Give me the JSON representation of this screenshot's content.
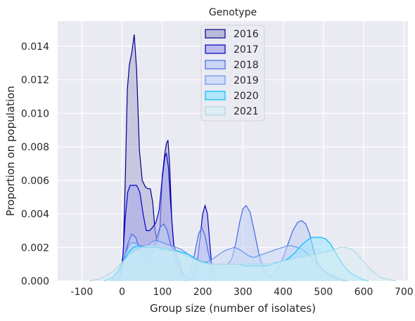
{
  "chart_data": {
    "type": "area",
    "title": "Genotype",
    "xlabel": "Group size (number of isolates)",
    "ylabel": "Proportion on population",
    "xlim": [
      -160,
      710
    ],
    "ylim": [
      0,
      0.0155
    ],
    "xticks": [
      -100,
      0,
      100,
      200,
      300,
      400,
      500,
      600,
      700
    ],
    "yticks": [
      0.0,
      0.002,
      0.004,
      0.006,
      0.008,
      0.01,
      0.012,
      0.014
    ],
    "ytick_labels": [
      "0.000",
      "0.002",
      "0.004",
      "0.006",
      "0.008",
      "0.010",
      "0.012",
      "0.014"
    ],
    "grid": true,
    "legend_position": "top-center",
    "series": [
      {
        "name": "2016",
        "color": "#00008b",
        "fill": "#aaaad1",
        "points": [
          [
            -10,
            0
          ],
          [
            -2,
            0.0003
          ],
          [
            3,
            0.0017
          ],
          [
            8,
            0.0062
          ],
          [
            13,
            0.0114
          ],
          [
            18,
            0.0129
          ],
          [
            24,
            0.0136
          ],
          [
            30,
            0.0147
          ],
          [
            36,
            0.0126
          ],
          [
            43,
            0.0078
          ],
          [
            50,
            0.006
          ],
          [
            58,
            0.0056
          ],
          [
            64,
            0.0055
          ],
          [
            70,
            0.0055
          ],
          [
            76,
            0.0047
          ],
          [
            82,
            0.003
          ],
          [
            88,
            0.0022
          ],
          [
            94,
            0.0031
          ],
          [
            100,
            0.0063
          ],
          [
            106,
            0.0076
          ],
          [
            110,
            0.0082
          ],
          [
            114,
            0.0084
          ],
          [
            118,
            0.007
          ],
          [
            124,
            0.0033
          ],
          [
            132,
            0.0013
          ],
          [
            140,
            0.0005
          ],
          [
            150,
            0.0001
          ],
          [
            160,
            0
          ]
        ]
      },
      {
        "name": "2017",
        "color": "#0000cd",
        "fill": "#aaaaeb",
        "points": [
          [
            -10,
            0
          ],
          [
            -4,
            0.0003
          ],
          [
            2,
            0.0015
          ],
          [
            8,
            0.0038
          ],
          [
            14,
            0.0053
          ],
          [
            20,
            0.0057
          ],
          [
            28,
            0.0057
          ],
          [
            36,
            0.0057
          ],
          [
            44,
            0.0053
          ],
          [
            52,
            0.004
          ],
          [
            60,
            0.003
          ],
          [
            68,
            0.003
          ],
          [
            76,
            0.0032
          ],
          [
            84,
            0.0035
          ],
          [
            92,
            0.0042
          ],
          [
            100,
            0.0062
          ],
          [
            106,
            0.0074
          ],
          [
            110,
            0.0076
          ],
          [
            115,
            0.0068
          ],
          [
            120,
            0.0048
          ],
          [
            128,
            0.0022
          ],
          [
            136,
            0.0015
          ],
          [
            144,
            0.001
          ],
          [
            150,
            0.0005
          ],
          [
            158,
            0.0002
          ],
          [
            166,
            0.0001
          ],
          [
            176,
            0.0002
          ],
          [
            186,
            0.001
          ],
          [
            194,
            0.0026
          ],
          [
            200,
            0.004
          ],
          [
            206,
            0.0045
          ],
          [
            212,
            0.004
          ],
          [
            218,
            0.0022
          ],
          [
            224,
            0.0005
          ],
          [
            232,
            0
          ]
        ]
      },
      {
        "name": "2018",
        "color": "#4169e1",
        "fill": "#c0cdf5",
        "points": [
          [
            -20,
            0
          ],
          [
            -8,
            0.0002
          ],
          [
            4,
            0.0012
          ],
          [
            14,
            0.0022
          ],
          [
            24,
            0.0028
          ],
          [
            34,
            0.0026
          ],
          [
            44,
            0.0018
          ],
          [
            54,
            0.0013
          ],
          [
            64,
            0.0012
          ],
          [
            74,
            0.0016
          ],
          [
            84,
            0.0024
          ],
          [
            94,
            0.0032
          ],
          [
            104,
            0.0034
          ],
          [
            112,
            0.003
          ],
          [
            120,
            0.0022
          ],
          [
            130,
            0.0016
          ],
          [
            140,
            0.0009
          ],
          [
            150,
            0.0004
          ],
          [
            160,
            0.0002
          ],
          [
            170,
            0.0006
          ],
          [
            180,
            0.0016
          ],
          [
            190,
            0.0028
          ],
          [
            198,
            0.0032
          ],
          [
            206,
            0.0027
          ],
          [
            214,
            0.0017
          ],
          [
            222,
            0.0009
          ],
          [
            232,
            0.0007
          ],
          [
            242,
            0.001
          ],
          [
            252,
            0.001
          ],
          [
            262,
            0.001
          ],
          [
            272,
            0.0013
          ],
          [
            282,
            0.0022
          ],
          [
            292,
            0.0035
          ],
          [
            300,
            0.0043
          ],
          [
            308,
            0.0045
          ],
          [
            318,
            0.0041
          ],
          [
            328,
            0.003
          ],
          [
            340,
            0.0016
          ],
          [
            352,
            0.0006
          ],
          [
            364,
            0.0002
          ],
          [
            376,
            0.0004
          ],
          [
            388,
            0.0008
          ],
          [
            400,
            0.0014
          ],
          [
            412,
            0.0022
          ],
          [
            424,
            0.003
          ],
          [
            436,
            0.0035
          ],
          [
            446,
            0.0036
          ],
          [
            456,
            0.0034
          ],
          [
            466,
            0.0028
          ],
          [
            476,
            0.0018
          ],
          [
            486,
            0.001
          ],
          [
            500,
            0.0006
          ],
          [
            516,
            0.0003
          ],
          [
            534,
            0.0001
          ],
          [
            552,
            0
          ]
        ]
      },
      {
        "name": "2019",
        "color": "#6495ed",
        "fill": "#c8d8f8",
        "points": [
          [
            -30,
            0
          ],
          [
            -16,
            0.0002
          ],
          [
            -4,
            0.0007
          ],
          [
            8,
            0.0016
          ],
          [
            18,
            0.0022
          ],
          [
            28,
            0.0023
          ],
          [
            38,
            0.0022
          ],
          [
            48,
            0.0021
          ],
          [
            58,
            0.0021
          ],
          [
            68,
            0.0022
          ],
          [
            78,
            0.0024
          ],
          [
            88,
            0.0024
          ],
          [
            98,
            0.0023
          ],
          [
            110,
            0.0022
          ],
          [
            122,
            0.0021
          ],
          [
            134,
            0.002
          ],
          [
            146,
            0.0019
          ],
          [
            158,
            0.0017
          ],
          [
            170,
            0.0015
          ],
          [
            182,
            0.0013
          ],
          [
            194,
            0.0011
          ],
          [
            206,
            0.0011
          ],
          [
            218,
            0.0012
          ],
          [
            230,
            0.0014
          ],
          [
            242,
            0.0016
          ],
          [
            254,
            0.0018
          ],
          [
            266,
            0.0019
          ],
          [
            278,
            0.002
          ],
          [
            290,
            0.0019
          ],
          [
            302,
            0.0017
          ],
          [
            314,
            0.0015
          ],
          [
            326,
            0.0014
          ],
          [
            338,
            0.0015
          ],
          [
            350,
            0.0016
          ],
          [
            362,
            0.0017
          ],
          [
            374,
            0.0018
          ],
          [
            386,
            0.0019
          ],
          [
            398,
            0.002
          ],
          [
            410,
            0.0021
          ],
          [
            422,
            0.0021
          ],
          [
            434,
            0.002
          ],
          [
            446,
            0.0019
          ],
          [
            458,
            0.0017
          ],
          [
            470,
            0.0014
          ],
          [
            482,
            0.0011
          ],
          [
            494,
            0.0008
          ],
          [
            508,
            0.0005
          ],
          [
            524,
            0.0003
          ],
          [
            542,
            0.0001
          ],
          [
            560,
            0
          ]
        ]
      },
      {
        "name": "2020",
        "color": "#00bfff",
        "fill": "#99e5ff",
        "points": [
          [
            -45,
            0
          ],
          [
            -25,
            0.0002
          ],
          [
            -10,
            0.0006
          ],
          [
            4,
            0.0012
          ],
          [
            16,
            0.0017
          ],
          [
            28,
            0.002
          ],
          [
            40,
            0.0021
          ],
          [
            52,
            0.002
          ],
          [
            64,
            0.002
          ],
          [
            76,
            0.002
          ],
          [
            88,
            0.002
          ],
          [
            100,
            0.0019
          ],
          [
            112,
            0.0019
          ],
          [
            124,
            0.0018
          ],
          [
            136,
            0.0018
          ],
          [
            150,
            0.0017
          ],
          [
            164,
            0.0016
          ],
          [
            178,
            0.0014
          ],
          [
            192,
            0.0012
          ],
          [
            206,
            0.0011
          ],
          [
            220,
            0.001
          ],
          [
            234,
            0.001
          ],
          [
            248,
            0.001
          ],
          [
            262,
            0.001
          ],
          [
            276,
            0.001
          ],
          [
            290,
            0.001
          ],
          [
            304,
            0.0009
          ],
          [
            318,
            0.0009
          ],
          [
            332,
            0.0009
          ],
          [
            346,
            0.0009
          ],
          [
            360,
            0.0009
          ],
          [
            374,
            0.001
          ],
          [
            388,
            0.0011
          ],
          [
            402,
            0.0012
          ],
          [
            416,
            0.0014
          ],
          [
            430,
            0.0017
          ],
          [
            444,
            0.0021
          ],
          [
            458,
            0.0024
          ],
          [
            470,
            0.0026
          ],
          [
            482,
            0.0026
          ],
          [
            494,
            0.0026
          ],
          [
            506,
            0.0025
          ],
          [
            518,
            0.0022
          ],
          [
            530,
            0.0017
          ],
          [
            542,
            0.0012
          ],
          [
            554,
            0.0008
          ],
          [
            566,
            0.0005
          ],
          [
            580,
            0.0003
          ],
          [
            596,
            0.0001
          ],
          [
            612,
            0
          ]
        ]
      },
      {
        "name": "2021",
        "color": "#add8e6",
        "fill": "#d9ecf3",
        "points": [
          [
            -80,
            0
          ],
          [
            -60,
            0.0001
          ],
          [
            -40,
            0.0003
          ],
          [
            -20,
            0.0006
          ],
          [
            0,
            0.0011
          ],
          [
            20,
            0.0016
          ],
          [
            40,
            0.0019
          ],
          [
            60,
            0.0021
          ],
          [
            80,
            0.0021
          ],
          [
            100,
            0.002
          ],
          [
            120,
            0.0019
          ],
          [
            140,
            0.0017
          ],
          [
            160,
            0.0015
          ],
          [
            180,
            0.0013
          ],
          [
            200,
            0.0011
          ],
          [
            220,
            0.001
          ],
          [
            240,
            0.001
          ],
          [
            260,
            0.001
          ],
          [
            280,
            0.001
          ],
          [
            300,
            0.001
          ],
          [
            320,
            0.001
          ],
          [
            340,
            0.001
          ],
          [
            360,
            0.001
          ],
          [
            380,
            0.0011
          ],
          [
            400,
            0.0012
          ],
          [
            420,
            0.0013
          ],
          [
            440,
            0.0014
          ],
          [
            460,
            0.0015
          ],
          [
            480,
            0.0016
          ],
          [
            500,
            0.0017
          ],
          [
            520,
            0.0018
          ],
          [
            540,
            0.002
          ],
          [
            556,
            0.002
          ],
          [
            570,
            0.0019
          ],
          [
            584,
            0.0016
          ],
          [
            598,
            0.0012
          ],
          [
            612,
            0.0008
          ],
          [
            626,
            0.0005
          ],
          [
            642,
            0.0002
          ],
          [
            660,
            0.0001
          ],
          [
            680,
            0
          ]
        ]
      }
    ]
  }
}
